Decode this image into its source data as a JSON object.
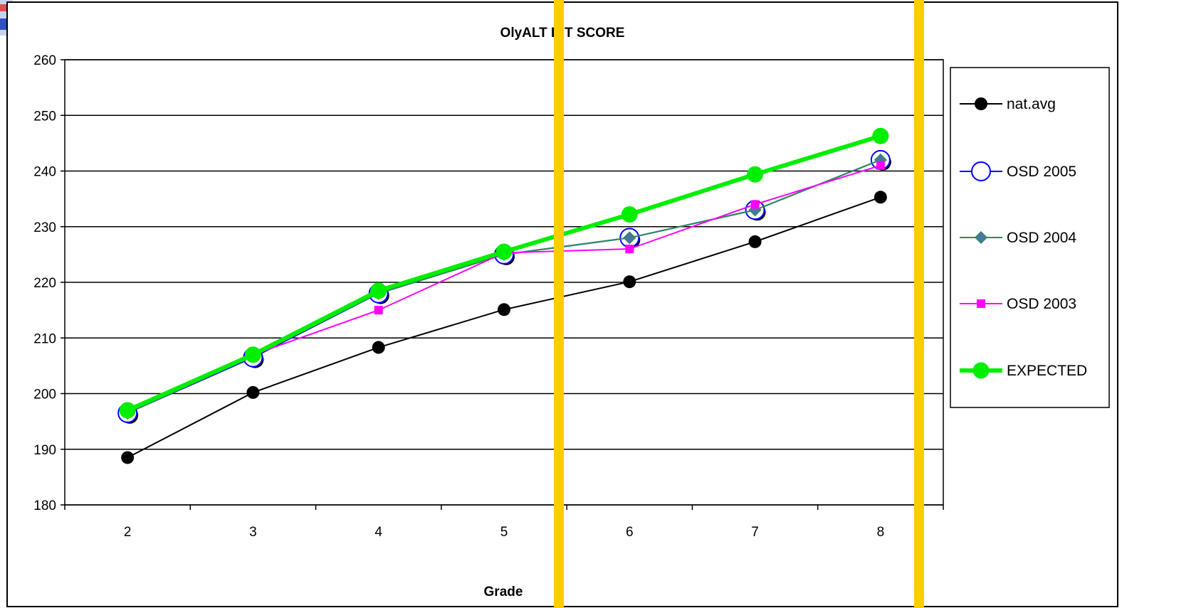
{
  "chart_data": {
    "type": "line",
    "title": "OlyALT RIT SCORE",
    "xlabel": "Grade",
    "ylabel": "",
    "categories": [
      "2",
      "3",
      "4",
      "5",
      "6",
      "7",
      "8"
    ],
    "yticks": [
      "180",
      "190",
      "200",
      "210",
      "220",
      "230",
      "240",
      "250",
      "260"
    ],
    "ylim": [
      180,
      260
    ],
    "grid": "horizontal",
    "legend_position": "right",
    "series": [
      {
        "name": "nat.avg",
        "values": [
          188.5,
          200.2,
          208.3,
          215.1,
          220.1,
          227.3,
          235.3
        ],
        "color": "#000000",
        "marker": "circle-filled"
      },
      {
        "name": "OSD 2005",
        "values": [
          196.5,
          206.5,
          218.0,
          225.0,
          228.0,
          233.0,
          242.0
        ],
        "color": "#0000ff",
        "marker": "circle-open"
      },
      {
        "name": "OSD 2004",
        "values": [
          196.5,
          206.7,
          218.0,
          225.0,
          228.0,
          233.0,
          242.0
        ],
        "color": "#2e8b57",
        "marker": "diamond"
      },
      {
        "name": "OSD 2003",
        "values": [
          197.0,
          207.0,
          215.0,
          225.3,
          226.0,
          234.0,
          241.0
        ],
        "color": "#ff00ff",
        "marker": "square"
      },
      {
        "name": "EXPECTED",
        "values": [
          197.0,
          207.0,
          218.5,
          225.5,
          232.2,
          239.4,
          246.3
        ],
        "color": "#00ee00",
        "marker": "circle-filled-large"
      }
    ],
    "highlight_color": "#ffcc00"
  }
}
